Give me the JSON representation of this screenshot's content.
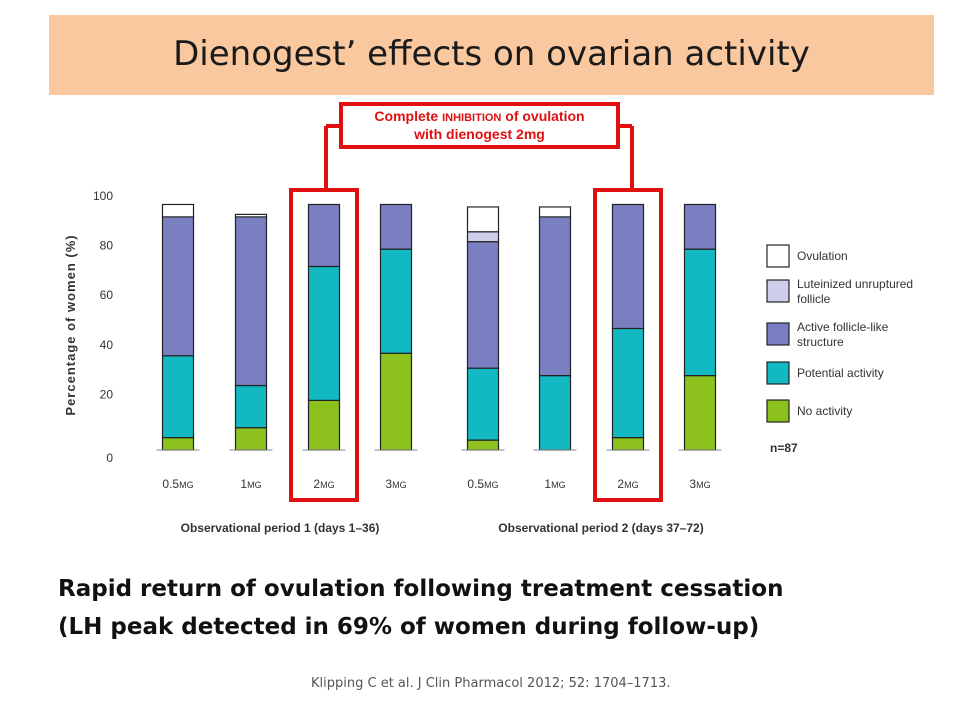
{
  "slide": {
    "title": "Dienogest’ effects on ovarian activity",
    "callout": {
      "line1_a": "Complete ",
      "line1_b": "INHIBITION",
      "line1_c": " of ovulation",
      "line2": "with dienogest 2mg"
    },
    "caption_line1": "Rapid return of ovulation following treatment cessation",
    "caption_line2": "(LH peak detected in 69% of women during follow-up)",
    "citation": "Klipping C et al. J Clin Pharmacol 2012; 52: 1704–1713.",
    "colors": {
      "title_bg": "#fac89f",
      "highlight": "#e01010"
    }
  },
  "chart_data": {
    "type": "bar",
    "stacked": true,
    "ylabel": "Percentage of women (%)",
    "ylim": [
      0,
      100
    ],
    "yticks": [
      0,
      20,
      40,
      60,
      80,
      100
    ],
    "categories": [
      "0.5mg",
      "1mg",
      "2mg",
      "3mg",
      "0.5mg",
      "1mg",
      "2mg",
      "3mg"
    ],
    "groups": [
      {
        "label": "Observational period 1 (days 1–36)"
      },
      {
        "label": "Observational period 2 (days 37–72)"
      }
    ],
    "highlighted_categories": [
      2,
      6
    ],
    "series": [
      {
        "name": "No activity",
        "color": "#8cc11e",
        "values": [
          5,
          9,
          20,
          39,
          4,
          0,
          5,
          30
        ]
      },
      {
        "name": "Potential activity",
        "color": "#12b9c2",
        "values": [
          33,
          17,
          54,
          42,
          29,
          30,
          44,
          51
        ]
      },
      {
        "name": "Active follicle-like structure",
        "color": "#7a7fc2",
        "values": [
          56,
          68,
          25,
          18,
          51,
          64,
          50,
          18
        ]
      },
      {
        "name": "Luteinized unruptured follicle",
        "color": "#cdcfea",
        "values": [
          0,
          0,
          0,
          0,
          4,
          0,
          0,
          0
        ]
      },
      {
        "name": "Ovulation",
        "color": "#ffffff",
        "values": [
          5,
          1,
          0,
          0,
          10,
          4,
          0,
          0
        ]
      }
    ],
    "legend": {
      "position": "right",
      "items": [
        {
          "label": "Ovulation",
          "color": "#ffffff"
        },
        {
          "label": "Luteinized unruptured follicle",
          "color": "#cdcfea"
        },
        {
          "label": "Active follicle-like structure",
          "color": "#7a7fc2"
        },
        {
          "label": "Potential activity",
          "color": "#12b9c2"
        },
        {
          "label": "No activity",
          "color": "#8cc11e"
        }
      ]
    },
    "annotation": "n=87"
  }
}
